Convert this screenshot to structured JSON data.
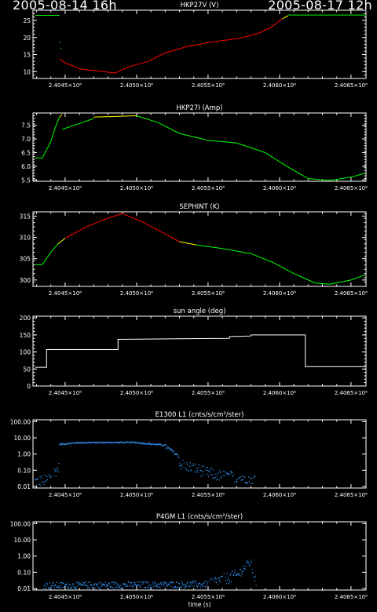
{
  "header": {
    "start_time": "2005-08-14 16h",
    "end_time": "2005-08-17 12h"
  },
  "shared_x": {
    "tick_labels": [
      "2.4045×10⁶",
      "2.4050×10⁶",
      "2.4055×10⁶",
      "2.4060×10⁶",
      "2.4065×10⁶"
    ],
    "tick_values": [
      2404500,
      2405000,
      2405500,
      2406000,
      2406500
    ],
    "xlim": [
      2404275,
      2406605
    ]
  },
  "colors": {
    "background": "#000000",
    "axes": "#ffffff",
    "nominal": "#00ff00",
    "caution": "#ffff00",
    "alarm": "#ff0000",
    "white_trace": "#ffffff",
    "blue_trace": "#3399ff"
  },
  "chart_data": [
    {
      "type": "line",
      "title": "HKP27V (V)",
      "ylim": [
        8,
        28
      ],
      "yticks": [
        10,
        15,
        20,
        25
      ],
      "ytick_labels": [
        "10",
        "15",
        "20",
        "25"
      ],
      "segments": [
        {
          "color": "green",
          "points": [
            [
              2404290,
              26.5
            ],
            [
              2404460,
              26.5
            ]
          ]
        },
        {
          "color": "red",
          "points": [
            [
              2404460,
              13.8
            ],
            [
              2404500,
              12.6
            ],
            [
              2404600,
              10.8
            ],
            [
              2404750,
              10.1
            ],
            [
              2404850,
              9.6
            ],
            [
              2404950,
              11.5
            ],
            [
              2405080,
              13.0
            ],
            [
              2405200,
              15.5
            ],
            [
              2405350,
              17.3
            ],
            [
              2405500,
              18.5
            ],
            [
              2405600,
              19.1
            ],
            [
              2405720,
              19.8
            ],
            [
              2405850,
              21.2
            ],
            [
              2405940,
              23.0
            ],
            [
              2406020,
              25.5
            ]
          ]
        },
        {
          "color": "yellow",
          "points": [
            [
              2406020,
              25.5
            ],
            [
              2406060,
              26.4
            ]
          ]
        },
        {
          "color": "green",
          "points": [
            [
              2406060,
              26.6
            ],
            [
              2406600,
              26.6
            ]
          ]
        }
      ],
      "dots": [
        [
          2404460,
          18.5
        ],
        [
          2404470,
          16.8
        ]
      ]
    },
    {
      "type": "line",
      "title": "HKP27I (Amp)",
      "ylim": [
        5.45,
        7.95
      ],
      "yticks": [
        5.5,
        6.0,
        6.5,
        7.0,
        7.5
      ],
      "ytick_labels": [
        "5.5",
        "6.0",
        "6.5",
        "7.0",
        "7.5"
      ],
      "segments": [
        {
          "color": "green",
          "points": [
            [
              2404290,
              6.3
            ],
            [
              2404340,
              6.3
            ],
            [
              2404400,
              6.9
            ],
            [
              2404430,
              7.4
            ],
            [
              2404460,
              7.8
            ]
          ]
        },
        {
          "color": "yellow",
          "points": [
            [
              2404460,
              7.8
            ],
            [
              2404480,
              7.9
            ]
          ]
        },
        {
          "color": "green",
          "points": [
            [
              2404480,
              7.35
            ],
            [
              2404620,
              7.6
            ],
            [
              2404700,
              7.75
            ]
          ]
        },
        {
          "color": "yellow",
          "points": [
            [
              2404700,
              7.8
            ],
            [
              2405000,
              7.85
            ]
          ]
        },
        {
          "color": "green",
          "points": [
            [
              2405000,
              7.85
            ],
            [
              2405150,
              7.6
            ],
            [
              2405300,
              7.2
            ],
            [
              2405500,
              6.95
            ],
            [
              2405700,
              6.85
            ],
            [
              2405900,
              6.5
            ],
            [
              2406050,
              6.0
            ],
            [
              2406200,
              5.55
            ],
            [
              2406350,
              5.48
            ],
            [
              2406500,
              5.6
            ],
            [
              2406600,
              5.75
            ]
          ]
        }
      ],
      "dots": []
    },
    {
      "type": "line",
      "title": "SEPHINT (K)",
      "ylim": [
        298.5,
        316
      ],
      "yticks": [
        300,
        305,
        310,
        315
      ],
      "ytick_labels": [
        "300",
        "305",
        "310",
        "315"
      ],
      "segments": [
        {
          "color": "green",
          "points": [
            [
              2404290,
              303.6
            ],
            [
              2404340,
              303.6
            ],
            [
              2404400,
              306.5
            ],
            [
              2404450,
              308.5
            ]
          ]
        },
        {
          "color": "yellow",
          "points": [
            [
              2404450,
              308.5
            ],
            [
              2404500,
              309.8
            ]
          ]
        },
        {
          "color": "red",
          "points": [
            [
              2404500,
              309.8
            ],
            [
              2404650,
              312.5
            ],
            [
              2404800,
              314.5
            ],
            [
              2404900,
              315.6
            ],
            [
              2405050,
              313.5
            ],
            [
              2405200,
              310.8
            ],
            [
              2405300,
              309.0
            ]
          ]
        },
        {
          "color": "yellow",
          "points": [
            [
              2405300,
              309.0
            ],
            [
              2405420,
              308.2
            ]
          ]
        },
        {
          "color": "green",
          "points": [
            [
              2405420,
              308.2
            ],
            [
              2405600,
              307.4
            ],
            [
              2405800,
              306.2
            ],
            [
              2405950,
              304.2
            ],
            [
              2406100,
              301.5
            ],
            [
              2406250,
              299.3
            ],
            [
              2406350,
              299.0
            ],
            [
              2406500,
              300.0
            ],
            [
              2406600,
              301.2
            ]
          ]
        }
      ],
      "dots": []
    },
    {
      "type": "line",
      "title": "sun angle (deg)",
      "ylim": [
        0,
        205
      ],
      "yticks": [
        0,
        50,
        100,
        150,
        200
      ],
      "ytick_labels": [
        "0",
        "50",
        "100",
        "150",
        "200"
      ],
      "segments": [
        {
          "color": "white",
          "points": [
            [
              2404290,
              55
            ],
            [
              2404370,
              55
            ],
            [
              2404370,
              107
            ],
            [
              2404870,
              107
            ],
            [
              2404870,
              137
            ],
            [
              2405650,
              140
            ],
            [
              2405650,
              145
            ],
            [
              2405800,
              147
            ],
            [
              2405800,
              150
            ],
            [
              2406180,
              150
            ],
            [
              2406180,
              57
            ],
            [
              2406600,
              57
            ]
          ]
        }
      ],
      "dots": []
    },
    {
      "type": "scatter",
      "title": "E1300 L1 (cnts/s/cm²/ster)",
      "yscale": "log",
      "ylim": [
        0.008,
        130
      ],
      "yticks": [
        0.01,
        0.1,
        1,
        10,
        100
      ],
      "ytick_labels": [
        "0.01",
        "0.10",
        "1.00",
        "10.00",
        "100.00"
      ],
      "color": "blue",
      "bands": [
        {
          "x": [
            2404290,
            2404380
          ],
          "y": [
            0.02,
            0.025
          ],
          "spread": 0.35
        },
        {
          "x": [
            2404380,
            2404460
          ],
          "y": [
            0.03,
            0.15
          ],
          "spread": 0.35
        },
        {
          "x": [
            2404460,
            2404600
          ],
          "y": [
            4.0,
            5.0
          ],
          "spread": 0.05
        },
        {
          "x": [
            2404600,
            2405000
          ],
          "y": [
            5.0,
            5.2
          ],
          "spread": 0.04
        },
        {
          "x": [
            2405000,
            2405200
          ],
          "y": [
            5.0,
            3.5
          ],
          "spread": 0.05
        },
        {
          "x": [
            2405200,
            2405300
          ],
          "y": [
            3.0,
            0.7
          ],
          "spread": 0.12
        },
        {
          "x": [
            2405300,
            2405550
          ],
          "y": [
            0.25,
            0.05
          ],
          "spread": 0.35
        },
        {
          "x": [
            2405550,
            2405840
          ],
          "y": [
            0.05,
            0.03
          ],
          "spread": 0.35
        }
      ]
    },
    {
      "type": "scatter",
      "title": "P4GM L1 (cnts/s/cm²/ster)",
      "xlabel": "time (s)",
      "yscale": "log",
      "ylim": [
        0.008,
        130
      ],
      "yticks": [
        0.01,
        0.1,
        1,
        10,
        100
      ],
      "ytick_labels": [
        "0.01",
        "0.10",
        "1.00",
        "10.00",
        "100.00"
      ],
      "color": "blue",
      "bands": [
        {
          "x": [
            2404350,
            2405500
          ],
          "y": [
            0.015,
            0.018
          ],
          "spread": 0.2
        },
        {
          "x": [
            2405500,
            2405700
          ],
          "y": [
            0.02,
            0.06
          ],
          "spread": 0.35
        },
        {
          "x": [
            2405700,
            2405800
          ],
          "y": [
            0.06,
            0.5
          ],
          "spread": 0.3
        },
        {
          "x": [
            2405800,
            2405840
          ],
          "y": [
            0.3,
            0.02
          ],
          "spread": 0.3
        }
      ]
    }
  ]
}
